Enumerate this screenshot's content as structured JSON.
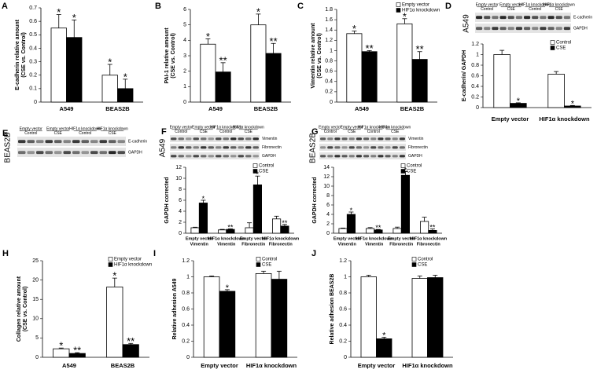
{
  "chart_data": [
    {
      "type": "bar",
      "panel": "A",
      "ylabel": [
        "E-cadherin relative amount",
        "(CSE vs. Control)"
      ],
      "categories": [
        "A549",
        "BEAS2B"
      ],
      "series": [
        {
          "color": "#ffffff",
          "values": [
            0.55,
            0.2
          ],
          "errors": [
            0.1,
            0.08
          ],
          "significance": [
            "*",
            "*"
          ]
        },
        {
          "color": "#000000",
          "values": [
            0.48,
            0.1
          ],
          "errors": [
            0.13,
            0.07
          ],
          "significance": [
            "*",
            "*"
          ]
        }
      ],
      "ylim": [
        0,
        0.7
      ],
      "yticks": [
        0,
        0.1,
        0.2,
        0.3,
        0.4,
        0.5,
        0.6,
        0.7
      ]
    },
    {
      "type": "bar",
      "panel": "B",
      "ylabel": [
        "PAI-1 relative amount",
        "(CSE vs. Control)"
      ],
      "categories": [
        "A549",
        "BEAS2B"
      ],
      "series": [
        {
          "color": "#ffffff",
          "values": [
            3.75,
            5.0
          ],
          "errors": [
            0.35,
            0.7
          ],
          "significance": [
            "*",
            "*"
          ]
        },
        {
          "color": "#000000",
          "values": [
            1.95,
            3.15
          ],
          "errors": [
            0.6,
            0.65
          ],
          "significance": [
            "**",
            "**"
          ]
        }
      ],
      "ylim": [
        0,
        6
      ],
      "yticks": [
        0,
        1,
        2,
        3,
        4,
        5,
        6
      ]
    },
    {
      "type": "bar",
      "panel": "C",
      "ylabel": [
        "Vimentin relative amount",
        "(CSE vs. Control)"
      ],
      "categories": [
        "A549",
        "BEAS2B"
      ],
      "series": [
        {
          "name": "Empty vector",
          "color": "#ffffff",
          "values": [
            1.33,
            1.52
          ],
          "errors": [
            0.05,
            0.1
          ],
          "significance": [
            "*",
            "*"
          ]
        },
        {
          "name": "HIF1α knockdown",
          "color": "#000000",
          "values": [
            0.98,
            0.83
          ],
          "errors": [
            0.02,
            0.15
          ],
          "significance": [
            "**",
            "**"
          ]
        }
      ],
      "ylim": [
        0,
        1.8
      ],
      "yticks": [
        0,
        0.2,
        0.4,
        0.6,
        0.8,
        1,
        1.2,
        1.4,
        1.6,
        1.8
      ],
      "legend": "upper right"
    },
    {
      "type": "bar",
      "panel": "D",
      "ylabel": [
        "E-cadherin/ GAPDH"
      ],
      "categories": [
        "Empty vector",
        "HIF1α knockdown"
      ],
      "series": [
        {
          "name": "Control",
          "color": "#ffffff",
          "values": [
            1.0,
            0.63
          ],
          "errors": [
            0.08,
            0.05
          ],
          "significance": [
            null,
            null
          ]
        },
        {
          "name": "CSE",
          "color": "#000000",
          "values": [
            0.08,
            0.03
          ],
          "errors": [
            0.01,
            0.01
          ],
          "significance": [
            "*",
            "*"
          ]
        }
      ],
      "ylim": [
        0,
        1.2
      ],
      "yticks": [
        0,
        0.2,
        0.4,
        0.6,
        0.8,
        1,
        1.2
      ],
      "legend": "upper right"
    },
    {
      "type": "bar",
      "panel": "F",
      "ylabel": [
        "GAPDH corrected"
      ],
      "categories": [
        [
          "Empty vector",
          "Vimentin"
        ],
        [
          "HIF1α knockdown",
          "Vimentin"
        ],
        [
          "Empty vector",
          "Fibronectin"
        ],
        [
          "HIF1α knockdown",
          "Fibronectin"
        ]
      ],
      "series": [
        {
          "name": "Control",
          "color": "#ffffff",
          "values": [
            1.0,
            0.6,
            1.0,
            2.6
          ],
          "errors": [
            0.1,
            0.1,
            0.9,
            0.5
          ],
          "significance": [
            null,
            null,
            null,
            null
          ]
        },
        {
          "name": "CSE",
          "color": "#000000",
          "values": [
            5.5,
            0.7,
            8.8,
            1.3
          ],
          "errors": [
            0.5,
            0.1,
            1.6,
            0.3
          ],
          "significance": [
            "*",
            "**",
            "*",
            "**"
          ]
        }
      ],
      "ylim": [
        0,
        12
      ],
      "yticks": [
        0,
        2,
        4,
        6,
        8,
        10,
        12
      ],
      "legend": "upper right"
    },
    {
      "type": "bar",
      "panel": "G",
      "ylabel": [
        "GAPDH corrected"
      ],
      "categories": [
        [
          "Empty vector",
          "Vimentin"
        ],
        [
          "HIF1α knockdown",
          "Vimentin"
        ],
        [
          "Empty vector",
          "Fibronectin"
        ],
        [
          "HIF1α knockdown",
          "Fibronectin"
        ]
      ],
      "series": [
        {
          "name": "Control",
          "color": "#ffffff",
          "values": [
            1.0,
            1.0,
            1.0,
            2.5
          ],
          "errors": [
            0.1,
            0.2,
            0.3,
            0.9
          ],
          "significance": [
            null,
            null,
            null,
            null
          ]
        },
        {
          "name": "CSE",
          "color": "#000000",
          "values": [
            4.0,
            0.7,
            12.3,
            0.6
          ],
          "errors": [
            0.5,
            0.1,
            0.8,
            0.3
          ],
          "significance": [
            "*",
            "**",
            "*",
            "**"
          ]
        }
      ],
      "ylim": [
        0,
        14
      ],
      "yticks": [
        0,
        2,
        4,
        6,
        8,
        10,
        12,
        14
      ],
      "legend": "upper right"
    },
    {
      "type": "bar",
      "panel": "H",
      "ylabel": [
        "Collagen relative amount",
        "(CSE vs. Control)"
      ],
      "categories": [
        "A549",
        "BEAS2B"
      ],
      "series": [
        {
          "name": "Empty vector",
          "color": "#ffffff",
          "values": [
            2.2,
            18.2
          ],
          "errors": [
            0.2,
            2.3
          ],
          "significance": [
            "*",
            "*"
          ]
        },
        {
          "name": "HIF1α knockdown",
          "color": "#000000",
          "values": [
            1.0,
            3.3
          ],
          "errors": [
            0.2,
            0.3
          ],
          "significance": [
            "**",
            "**"
          ]
        }
      ],
      "ylim": [
        0,
        25
      ],
      "yticks": [
        0,
        5,
        10,
        15,
        20,
        25
      ],
      "legend": "upper right"
    },
    {
      "type": "bar",
      "panel": "I",
      "ylabel": [
        "Relative adhesion A549"
      ],
      "categories": [
        "Empty vector",
        "HIF1α knockdown"
      ],
      "series": [
        {
          "name": "Control",
          "color": "#ffffff",
          "values": [
            1.0,
            1.04
          ],
          "errors": [
            0.01,
            0.03
          ],
          "significance": [
            null,
            null
          ]
        },
        {
          "name": "CSE",
          "color": "#000000",
          "values": [
            0.82,
            0.97
          ],
          "errors": [
            0.02,
            0.1
          ],
          "significance": [
            "*",
            null
          ]
        }
      ],
      "ylim": [
        0,
        1.2
      ],
      "yticks": [
        0,
        0.2,
        0.4,
        0.6,
        0.8,
        1,
        1.2
      ],
      "legend": "upper right"
    },
    {
      "type": "bar",
      "panel": "J",
      "ylabel": [
        "Relative adhesion BEAS2B"
      ],
      "categories": [
        "Empty vector",
        "HIF1α knockdown"
      ],
      "series": [
        {
          "name": "Control",
          "color": "#ffffff",
          "values": [
            1.0,
            0.98
          ],
          "errors": [
            0.02,
            0.03
          ],
          "significance": [
            null,
            null
          ]
        },
        {
          "name": "CSE",
          "color": "#000000",
          "values": [
            0.23,
            0.99
          ],
          "errors": [
            0.02,
            0.03
          ],
          "significance": [
            "*",
            null
          ]
        }
      ],
      "ylim": [
        0,
        1.2
      ],
      "yticks": [
        0,
        0.2,
        0.4,
        0.6,
        0.8,
        1,
        1.2
      ],
      "legend": "upper right"
    }
  ],
  "blots": [
    {
      "side": "A549",
      "headers": [
        [
          "Empty vector",
          "Control"
        ],
        [
          "Empty vector",
          "CSE"
        ],
        [
          "HIF1α knockdown",
          "Control"
        ],
        [
          "HIF1α knockdown",
          "CSE"
        ]
      ],
      "bands": [
        "E-cadherin",
        "GAPDH"
      ]
    },
    {
      "panel": "E",
      "side": "BEAS2B",
      "headers": [
        [
          "Empty vector",
          "Control"
        ],
        [
          "Empty vector",
          "CSE"
        ],
        [
          "HIF1α knockdown",
          "Control"
        ],
        [
          "HIF1α knockdown",
          "CSE"
        ]
      ],
      "bands": [
        "E-cadherin",
        "GAPDH"
      ]
    },
    {
      "side": "A549",
      "headers": [
        [
          "Empty vector",
          "Control"
        ],
        [
          "Empty vector",
          "CSE"
        ],
        [
          "HIF1α knockdown",
          "Control"
        ],
        [
          "HIF1α knockdown",
          "CSE"
        ]
      ],
      "bands": [
        "Vimentin",
        "Fibronectin",
        "GAPDH"
      ]
    },
    {
      "side": "BEAS2B",
      "headers": [
        [
          "Empty vector",
          "Control"
        ],
        [
          "Empty vector",
          "CSE"
        ],
        [
          "HIF1α knockdown",
          "Control"
        ],
        [
          "HIF1α knockdown",
          "CSE"
        ]
      ],
      "bands": [
        "Vimentin",
        "Fibronectin",
        "GAPDH"
      ]
    }
  ]
}
